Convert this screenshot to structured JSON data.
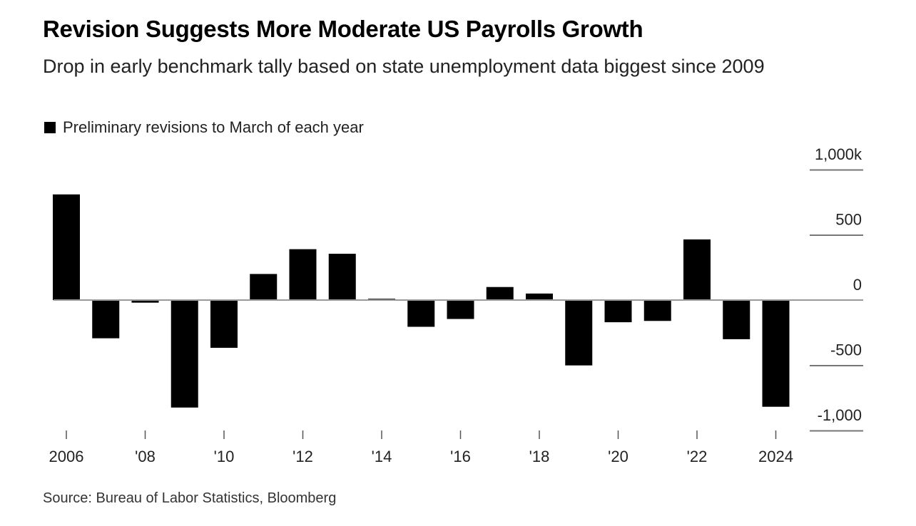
{
  "chart_data": {
    "type": "bar",
    "title": "Revision Suggests More Moderate US Payrolls Growth",
    "subtitle": "Drop in early benchmark tally based on state unemployment data biggest since 2009",
    "legend": [
      "Preliminary revisions to March of each year"
    ],
    "legend_placement": "top-left",
    "categories": [
      "2006",
      "2007",
      "2008",
      "2009",
      "2010",
      "2011",
      "2012",
      "2013",
      "2014",
      "2015",
      "2016",
      "2017",
      "2018",
      "2019",
      "2020",
      "2021",
      "2022",
      "2023",
      "2024"
    ],
    "values": [
      810,
      -293,
      -20,
      -824,
      -366,
      200,
      390,
      355,
      10,
      -205,
      -145,
      100,
      50,
      -501,
      -170,
      -160,
      465,
      -300,
      -818
    ],
    "x_tick_labels": [
      {
        "year": "2006",
        "label": "2006"
      },
      {
        "year": "2008",
        "label": "'08"
      },
      {
        "year": "2010",
        "label": "'10"
      },
      {
        "year": "2012",
        "label": "'12"
      },
      {
        "year": "2014",
        "label": "'14"
      },
      {
        "year": "2016",
        "label": "'16"
      },
      {
        "year": "2018",
        "label": "'18"
      },
      {
        "year": "2020",
        "label": "'20"
      },
      {
        "year": "2022",
        "label": "'22"
      },
      {
        "year": "2024",
        "label": "2024"
      }
    ],
    "y_ticks": [
      {
        "value": 1000,
        "label": "1,000k"
      },
      {
        "value": 500,
        "label": "500"
      },
      {
        "value": 0,
        "label": "0"
      },
      {
        "value": -500,
        "label": "-500"
      },
      {
        "value": -1000,
        "label": "-1,000"
      }
    ],
    "ylim": [
      -1000,
      1000
    ],
    "xlabel": "",
    "ylabel": "",
    "grid": false,
    "bar_color": "#000000",
    "source": "Source: Bureau of Labor Statistics, Bloomberg"
  }
}
